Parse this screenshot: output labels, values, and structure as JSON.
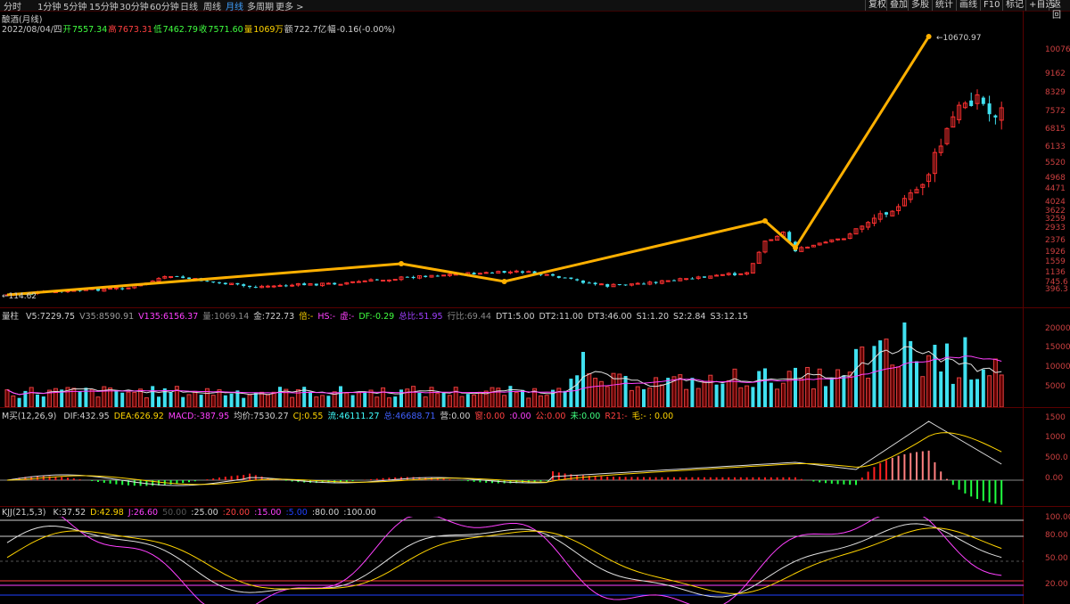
{
  "top_nav": {
    "periods": [
      "分时",
      "1分钟",
      "5分钟",
      "15分钟",
      "30分钟",
      "60分钟",
      "日线",
      "周线",
      "月线",
      "多周期",
      "更多 >"
    ],
    "active": "月线",
    "right_buttons": [
      "复权",
      "叠加",
      "多股",
      "统计",
      "画线",
      "F10",
      "标记",
      "+自选",
      "返回"
    ]
  },
  "main_chart": {
    "title": "酿酒(月线)",
    "date": "2022/08/04/四",
    "open_label": "开",
    "open": "7557.34",
    "high_label": "高",
    "high": "7673.31",
    "low_label": "低",
    "low": "7462.79",
    "close_label": "收",
    "close": "7571.60",
    "vol_label": "量",
    "vol": "1069万",
    "amt_label": "额",
    "amt": "722.7亿",
    "chg_label": "幅",
    "chg": "-0.16(-0.00%)",
    "peak_label": "10670.97",
    "low_mark": "114.62",
    "y_ticks": [
      "10076",
      "9162",
      "8329",
      "7572",
      "6815",
      "6133",
      "5520",
      "4968",
      "4471",
      "4024",
      "3622",
      "3259",
      "2933",
      "2376",
      "1926",
      "1559",
      "1136",
      "745.6",
      "396.3"
    ]
  },
  "volume_panel": {
    "title": "量柱",
    "items": [
      {
        "label": "V5:",
        "value": "7229.75",
        "color": "#d0d0d0"
      },
      {
        "label": "V35:",
        "value": "8590.91",
        "color": "#9a9a9a"
      },
      {
        "label": "V135:",
        "value": "6156.37",
        "color": "#ff40ff"
      },
      {
        "label": "量:",
        "value": "1069.14",
        "color": "#8a8a8a"
      },
      {
        "label": "金:",
        "value": "722.73",
        "color": "#d0d0d0"
      },
      {
        "label": "倍:",
        "value": "-",
        "color": "#ffd400"
      },
      {
        "label": "HS:",
        "value": "-",
        "color": "#ff40ff"
      },
      {
        "label": "虚:",
        "value": "-",
        "color": "#ff40ff"
      },
      {
        "label": "DF:",
        "value": "-0.29",
        "color": "#40ff40"
      },
      {
        "label": "总比:",
        "value": "51.95",
        "color": "#a040ff"
      },
      {
        "label": "行比:",
        "value": "69.44",
        "color": "#8a8a8a"
      },
      {
        "label": "DT1:",
        "value": "5.00",
        "color": "#d0d0d0"
      },
      {
        "label": "DT2:",
        "value": "11.00",
        "color": "#d0d0d0"
      },
      {
        "label": "DT3:",
        "value": "46.00",
        "color": "#d0d0d0"
      },
      {
        "label": "S1:",
        "value": "1.20",
        "color": "#d0d0d0"
      },
      {
        "label": "S2:",
        "value": "2.84",
        "color": "#d0d0d0"
      },
      {
        "label": "S3:",
        "value": "12.15",
        "color": "#d0d0d0"
      }
    ],
    "y_ticks": [
      "20000",
      "15000",
      "10000",
      "5000"
    ]
  },
  "macd_panel": {
    "title": "M买(12,26,9)",
    "items": [
      {
        "label": "DIF:",
        "value": "432.95",
        "color": "#d0d0d0"
      },
      {
        "label": "DEA:",
        "value": "626.92",
        "color": "#ffd400"
      },
      {
        "label": "MACD:",
        "value": "-387.95",
        "color": "#ff40ff"
      },
      {
        "label": "均价:",
        "value": "7530.27",
        "color": "#d0d0d0"
      },
      {
        "label": "CJ:",
        "value": "0.55",
        "color": "#ffd400"
      },
      {
        "label": "流:",
        "value": "46111.27",
        "color": "#40ffff"
      },
      {
        "label": "总:",
        "value": "46688.71",
        "color": "#4060ff"
      },
      {
        "label": "营:",
        "value": "0.00",
        "color": "#d0d0d0"
      },
      {
        "label": "窗:",
        "value": "0.00",
        "color": "#ff4040"
      },
      {
        "label": ":",
        "value": "0.00",
        "color": "#ff40ff"
      },
      {
        "label": "公:",
        "value": "0.00",
        "color": "#ff4040"
      },
      {
        "label": "未:",
        "value": "0.00",
        "color": "#40ff80"
      },
      {
        "label": "R21:",
        "value": "-",
        "color": "#ff4040"
      },
      {
        "label": "毛:",
        "value": "- : 0.00",
        "color": "#ffd400"
      }
    ],
    "y_ticks": [
      "1500",
      "1000",
      "500.0",
      "0.00"
    ]
  },
  "kdj_panel": {
    "title": "KJJ(21,5,3)",
    "items": [
      {
        "label": "K:",
        "value": "37.52",
        "color": "#d0d0d0"
      },
      {
        "label": "D:",
        "value": "42.98",
        "color": "#ffd400"
      },
      {
        "label": "J:",
        "value": "26.60",
        "color": "#ff40ff"
      },
      {
        "label": "",
        "value": "50.00",
        "color": "#555555"
      },
      {
        "label": ":",
        "value": "25.00",
        "color": "#d0d0d0"
      },
      {
        "label": ":",
        "value": "20.00",
        "color": "#ff4040"
      },
      {
        "label": ":",
        "value": "15.00",
        "color": "#ff40ff"
      },
      {
        "label": ":",
        "value": "5.00",
        "color": "#2040ff"
      },
      {
        "label": ":",
        "value": "80.00",
        "color": "#d0d0d0"
      },
      {
        "label": ":",
        "value": "100.00",
        "color": "#d0d0d0"
      }
    ],
    "y_ticks": [
      "100.00",
      "80.00",
      "50.00",
      "20.00"
    ]
  },
  "colors": {
    "up": "#ff3030",
    "down": "#40e0f0",
    "trend": "#ffb000",
    "grid": "#5a0000"
  }
}
